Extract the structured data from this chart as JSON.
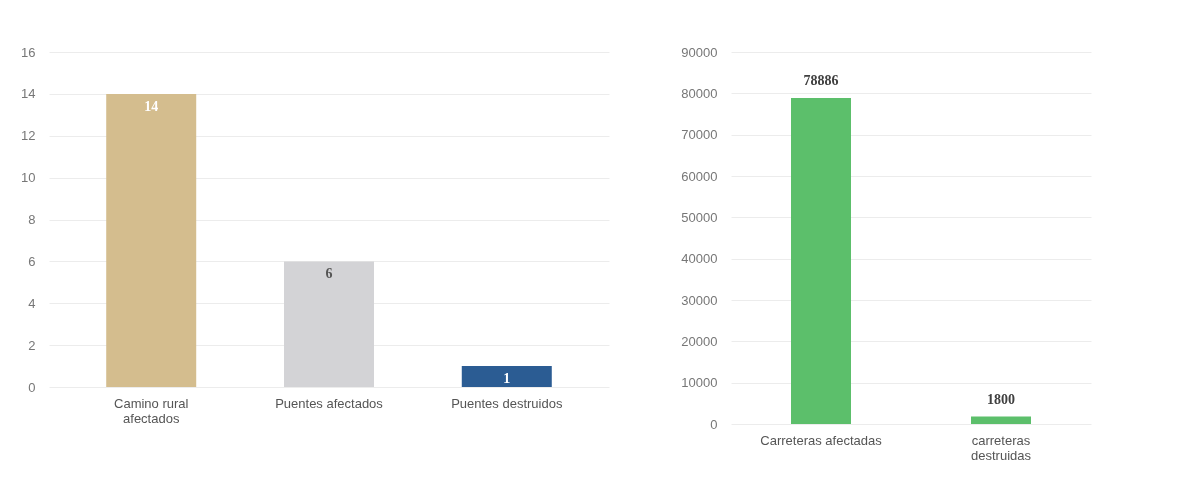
{
  "chart_data": [
    {
      "type": "bar",
      "categories": [
        "Camino rural afectados",
        "Puentes afectados",
        "Puentes destruidos"
      ],
      "values": [
        14,
        6,
        1
      ],
      "colors": [
        "#d4bd8e",
        "#d3d3d6",
        "#2b5c93"
      ],
      "ylim": [
        0,
        16
      ],
      "yticks": [
        0,
        2,
        4,
        6,
        8,
        10,
        12,
        14,
        16
      ],
      "grid": true,
      "data_labels": true
    },
    {
      "type": "bar",
      "categories": [
        "Carreteras afectadas",
        "carreteras destruidas"
      ],
      "values": [
        78886,
        1800
      ],
      "colors": [
        "#5cbf6b",
        "#5cbf6b"
      ],
      "ylim": [
        0,
        90000
      ],
      "yticks": [
        0,
        10000,
        20000,
        30000,
        40000,
        50000,
        60000,
        70000,
        80000,
        90000
      ],
      "grid": true,
      "data_labels": true
    }
  ]
}
